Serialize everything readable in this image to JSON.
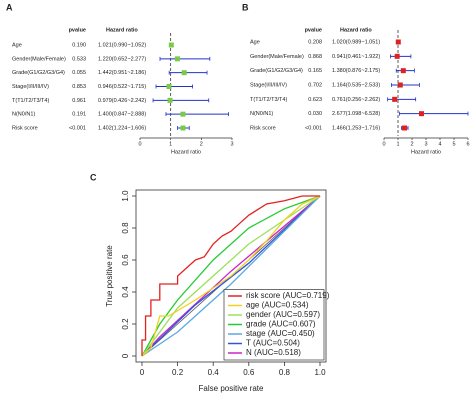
{
  "chart_data": [
    {
      "type": "forest",
      "panel_label": "A",
      "pvalue_header": "pvalue",
      "hr_header": "Hazard ratio",
      "xlabel": "Hazard ratio",
      "categories": [
        "Age",
        "Gender(Male/Female)",
        "Grade(G1/G2/G3/G4)",
        "Stage(I/II/III/IV)",
        "T(T1/T2/T3/T4)",
        "N(N0/N1)",
        "Risk score"
      ],
      "pvalues": [
        "0.190",
        "0.533",
        "0.055",
        "0.853",
        "0.961",
        "0.191",
        "<0.001"
      ],
      "values": [
        1.021,
        1.22,
        1.442,
        0.946,
        0.979,
        1.4,
        1.402
      ],
      "lower": [
        0.99,
        0.652,
        0.951,
        0.522,
        0.426,
        0.847,
        1.224
      ],
      "upper": [
        1.052,
        2.277,
        2.186,
        1.715,
        2.242,
        2.888,
        1.606
      ],
      "value_labels": [
        "1.021(0.990~1.052)",
        "1.220(0.652~2.277)",
        "1.442(0.951~2.186)",
        "0.946(0.522~1.715)",
        "0.979(0.426~2.242)",
        "1.400(0.847~2.888)",
        "1.402(1.224~1.606)"
      ],
      "ref_line": 1,
      "xlim": [
        0,
        3
      ],
      "xticks": [
        0,
        1,
        2,
        3
      ],
      "color": "#2233cc",
      "point_color": "#77cc44"
    },
    {
      "type": "forest",
      "panel_label": "B",
      "pvalue_header": "pvalue",
      "hr_header": "Hazard ratio",
      "xlabel": "Hazard ratio",
      "categories": [
        "Age",
        "Gender(Male/Female)",
        "Grade(G1/G2/G3/G4)",
        "Stage(I/II/III/IV)",
        "T(T1/T2/T3/T4)",
        "N(N0/N1)",
        "Risk score"
      ],
      "pvalues": [
        "0.208",
        "0.868",
        "0.165",
        "0.702",
        "0.623",
        "0.030",
        "<0.001"
      ],
      "values": [
        1.02,
        0.941,
        1.38,
        1.164,
        0.761,
        2.677,
        1.466
      ],
      "lower": [
        0.989,
        0.461,
        0.876,
        0.535,
        0.256,
        1.098,
        1.253
      ],
      "upper": [
        1.051,
        1.922,
        2.175,
        2.533,
        2.262,
        6.528,
        1.716
      ],
      "value_labels": [
        "1.020(0.989~1.051)",
        "0.941(0.461~1.922)",
        "1.380(0.876~2.175)",
        "1.164(0.535~2.533)",
        "0.761(0.256~2.262)",
        "2.677(1.098~6.528)",
        "1.466(1.253~1.716)"
      ],
      "ref_line": 1,
      "xlim": [
        0,
        6
      ],
      "xticks": [
        0,
        1,
        2,
        3,
        4,
        5,
        6
      ],
      "color": "#2233cc",
      "point_color": "#dd2222"
    },
    {
      "type": "line",
      "panel_label": "C",
      "xlabel": "False positive rate",
      "ylabel": "True positive rate",
      "xlim": [
        0,
        1
      ],
      "ylim": [
        0,
        1
      ],
      "xticks": [
        0,
        0.2,
        0.4,
        0.6,
        0.8,
        {
          "value": 1,
          "label": "1.0"
        }
      ],
      "yticks": [
        0,
        0.2,
        0.4,
        0.6,
        0.8,
        {
          "value": 1,
          "label": "1.0"
        }
      ],
      "diagonal": true,
      "legend": "lower right",
      "series": [
        {
          "name": "risk score (AUC=0.719)",
          "color": "#e32222",
          "x": [
            0,
            0,
            0.02,
            0.02,
            0.05,
            0.05,
            0.1,
            0.1,
            0.2,
            0.2,
            0.25,
            0.3,
            0.35,
            0.4,
            0.45,
            0.5,
            0.55,
            0.6,
            0.7,
            0.8,
            0.9,
            1
          ],
          "values": [
            0,
            0.1,
            0.1,
            0.25,
            0.25,
            0.35,
            0.35,
            0.45,
            0.45,
            0.5,
            0.55,
            0.6,
            0.62,
            0.7,
            0.75,
            0.78,
            0.83,
            0.88,
            0.95,
            0.97,
            1,
            1
          ]
        },
        {
          "name": "age (AUC=0.534)",
          "color": "#f2d21a",
          "x": [
            0,
            0.05,
            0.1,
            0.15,
            0.3,
            0.5,
            0.6,
            0.7,
            0.8,
            0.9,
            1
          ],
          "values": [
            0,
            0.05,
            0.25,
            0.25,
            0.35,
            0.5,
            0.6,
            0.72,
            0.85,
            0.95,
            1
          ]
        },
        {
          "name": "gender (AUC=0.597)",
          "color": "#9be05a",
          "x": [
            0,
            0.2,
            0.4,
            0.6,
            0.8,
            1
          ],
          "values": [
            0,
            0.3,
            0.5,
            0.7,
            0.85,
            1
          ]
        },
        {
          "name": "grade (AUC=0.607)",
          "color": "#22cc33",
          "x": [
            0,
            0.1,
            0.2,
            0.4,
            0.6,
            0.8,
            1
          ],
          "values": [
            0,
            0.2,
            0.35,
            0.6,
            0.8,
            0.92,
            1
          ]
        },
        {
          "name": "stage (AUC=0.450)",
          "color": "#5ba8e0",
          "x": [
            0,
            0.2,
            0.5,
            0.8,
            1
          ],
          "values": [
            0,
            0.15,
            0.45,
            0.78,
            1
          ]
        },
        {
          "name": "T (AUC=0.504)",
          "color": "#3355dd",
          "x": [
            0,
            0.3,
            0.6,
            1
          ],
          "values": [
            0,
            0.32,
            0.58,
            1
          ]
        },
        {
          "name": "N (AUC=0.518)",
          "color": "#cc22cc",
          "x": [
            0,
            0.1,
            0.5,
            1
          ],
          "values": [
            0,
            0.12,
            0.53,
            1
          ]
        }
      ]
    }
  ]
}
